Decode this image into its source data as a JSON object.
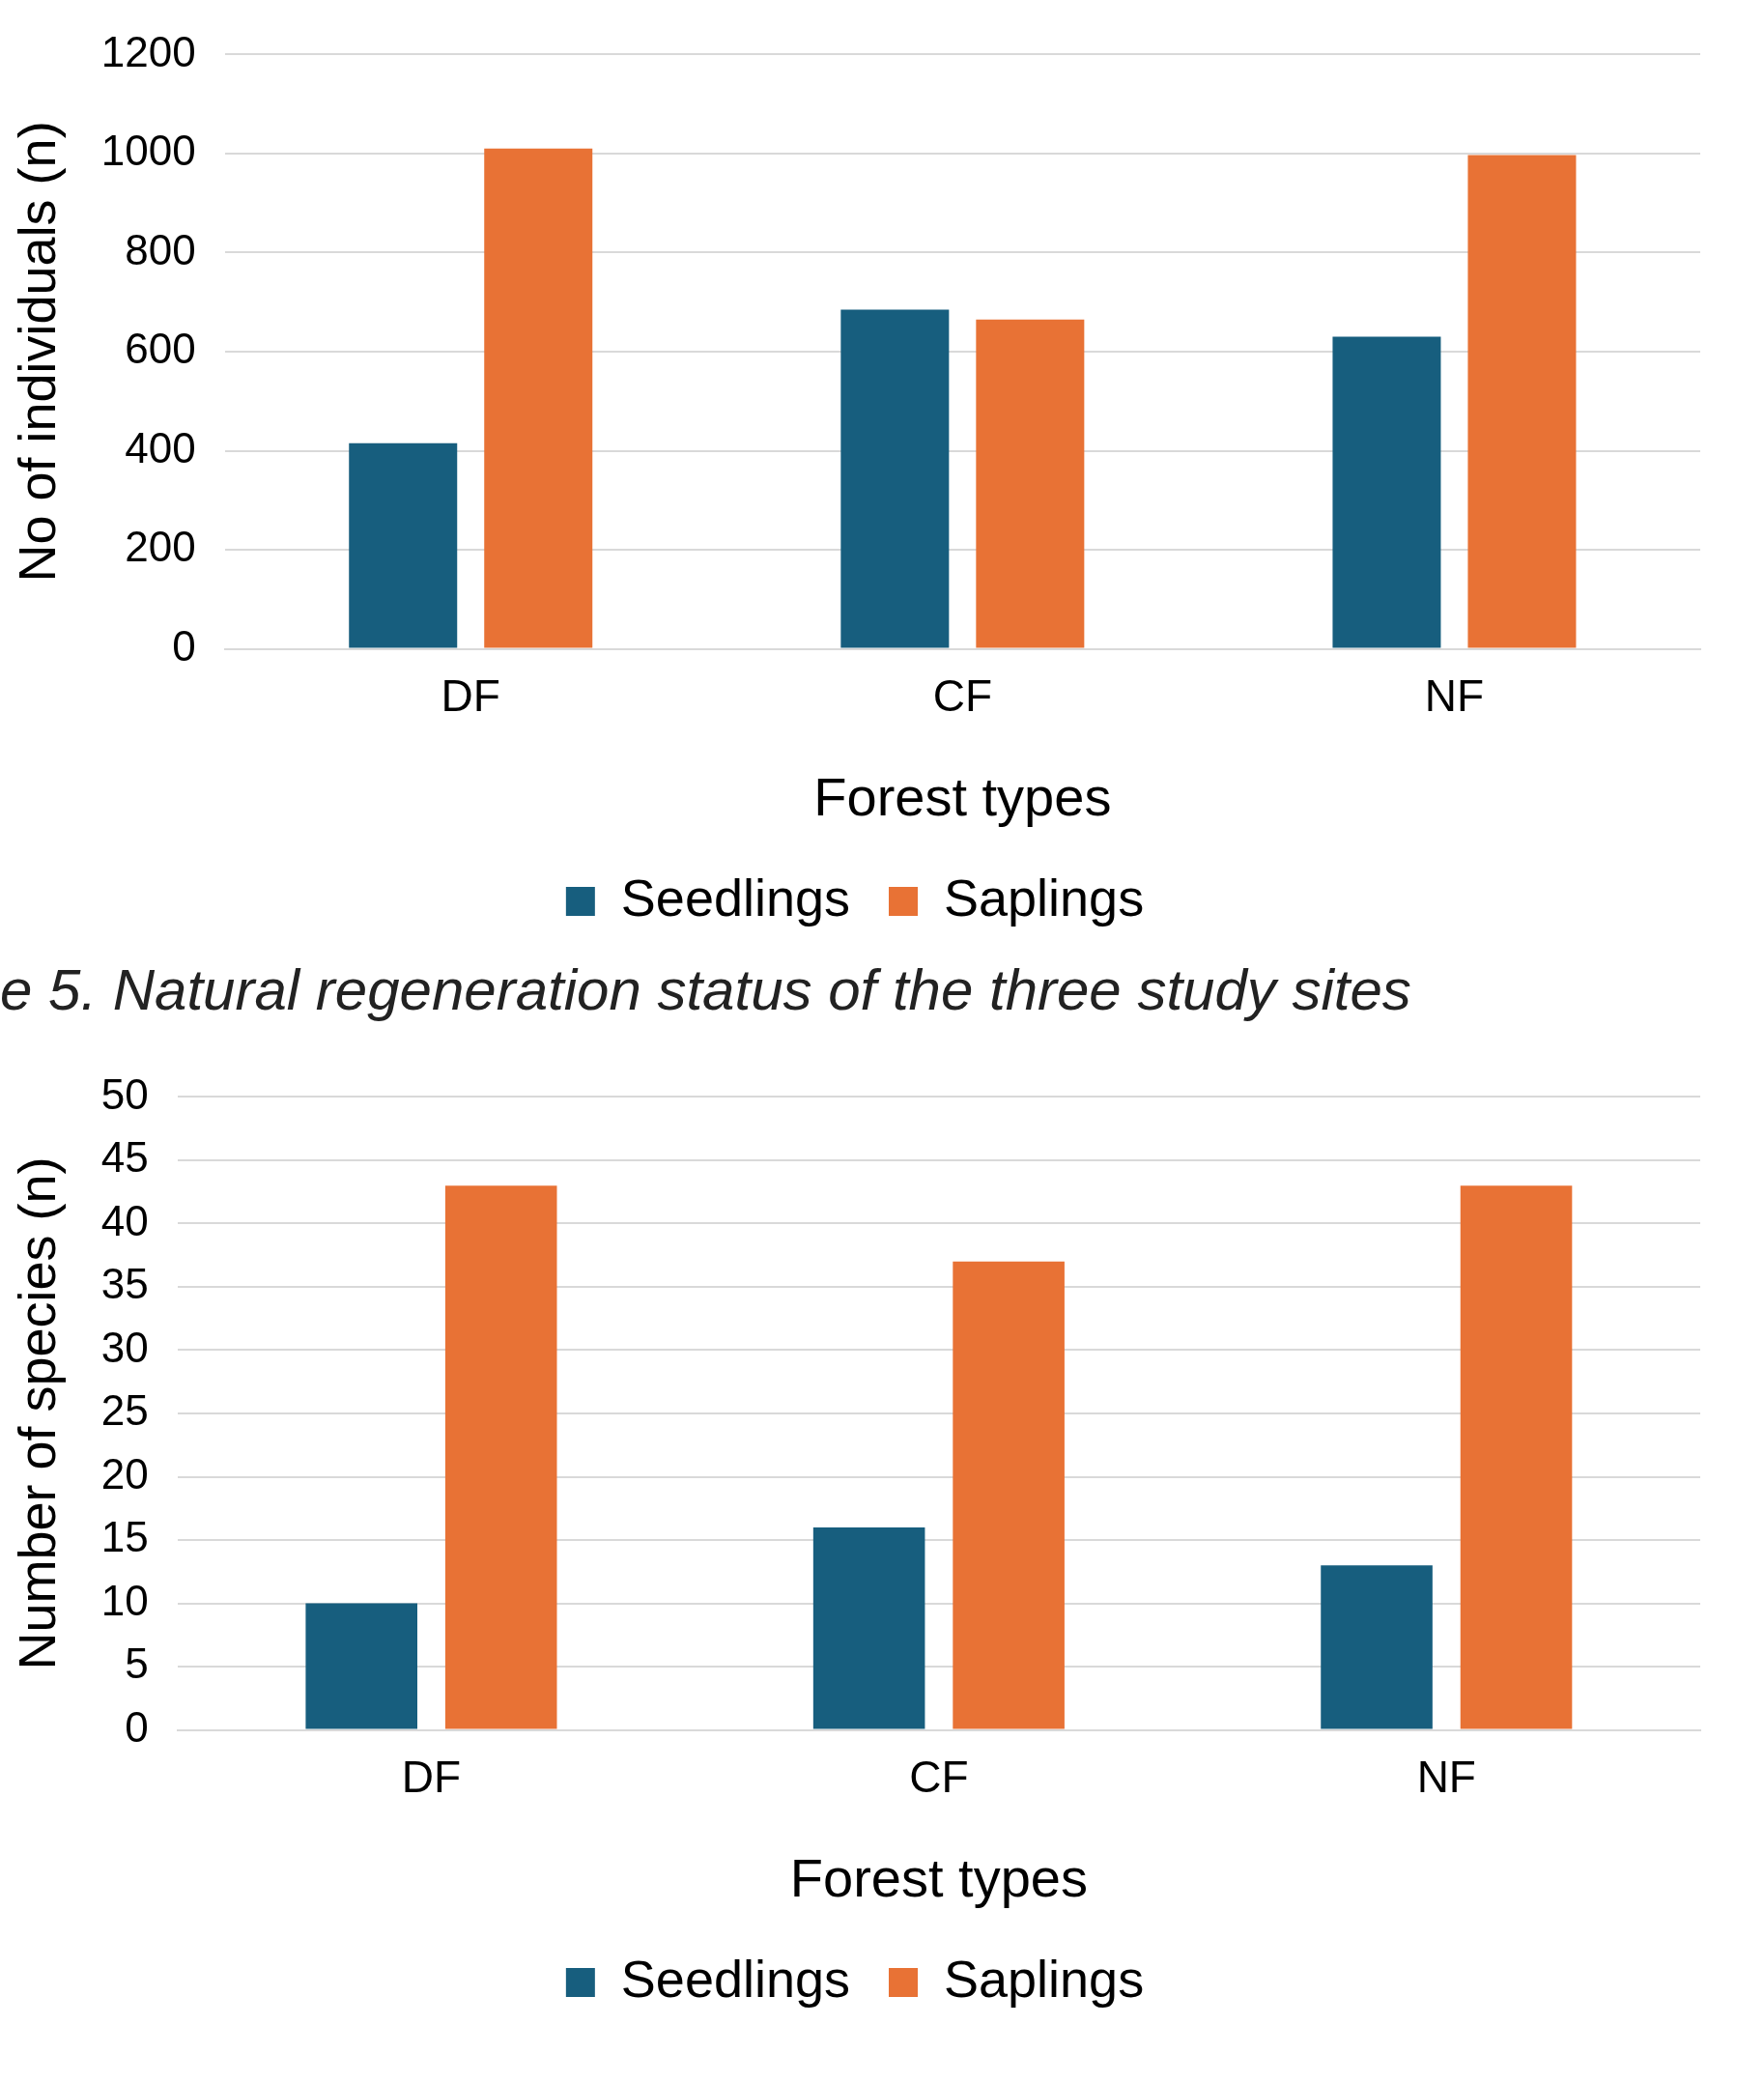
{
  "chart_data": [
    {
      "type": "bar",
      "xlabel": "Forest types",
      "ylabel": "No of individuals (n)",
      "categories": [
        "DF",
        "CF",
        "NF"
      ],
      "series": [
        {
          "name": "Seedlings",
          "color": "#175e7e",
          "values": [
            415,
            685,
            630
          ]
        },
        {
          "name": "Saplings",
          "color": "#e87235",
          "values": [
            1010,
            665,
            997
          ]
        }
      ],
      "ylim": [
        0,
        1200
      ],
      "yticks": [
        0,
        200,
        400,
        600,
        800,
        1000,
        1200
      ],
      "grid": "y",
      "legend": "bottom",
      "annotations": [
        "e 5. Natural regeneration status of the three study sites"
      ]
    },
    {
      "type": "bar",
      "xlabel": "Forest types",
      "ylabel": "Number of species (n)",
      "categories": [
        "DF",
        "CF",
        "NF"
      ],
      "series": [
        {
          "name": "Seedlings",
          "color": "#175e7e",
          "values": [
            10,
            16,
            13
          ]
        },
        {
          "name": "Saplings",
          "color": "#e87235",
          "values": [
            43,
            37,
            43
          ]
        }
      ],
      "ylim": [
        0,
        50
      ],
      "yticks": [
        0,
        5,
        10,
        15,
        20,
        25,
        30,
        35,
        40,
        45,
        50
      ],
      "grid": "y",
      "legend": "bottom"
    }
  ]
}
